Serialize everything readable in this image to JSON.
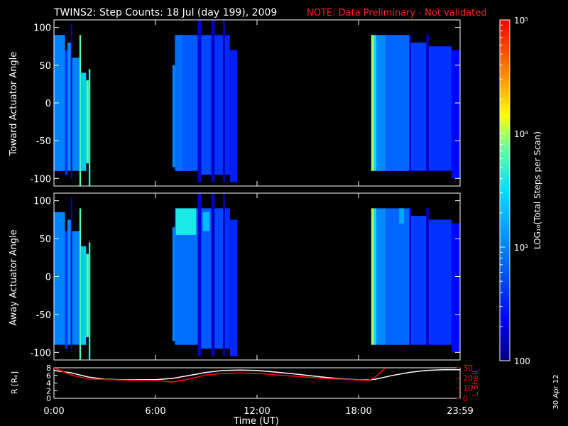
{
  "title": {
    "main": "TWINS2: Step Counts: 18 Jul (day 199), 2009",
    "note": "NOTE: Data Preliminary - Not validated",
    "note_color": "#ff2020"
  },
  "side_date": "30 Apr 12",
  "colorbar": {
    "label": "LOG₁₀(Total Steps per Scan)",
    "tick_labels": [
      "10⁵",
      "10⁴",
      "10³",
      "100"
    ],
    "range_log": [
      2,
      5
    ],
    "colormap": [
      "#000080",
      "#0000ff",
      "#0080ff",
      "#00ffff",
      "#80ff80",
      "#ffff00",
      "#ff8000",
      "#ff0000"
    ]
  },
  "chart_data": [
    {
      "type": "heatmap",
      "ylabel": "Toward Actuator Angle",
      "xlim_hours": [
        0,
        24
      ],
      "ylim": [
        -110,
        110
      ],
      "y_ticks": [
        100,
        50,
        0,
        -50,
        -100
      ],
      "y_tick_labels": [
        "100",
        "50",
        "0",
        "-50",
        "-100"
      ],
      "x_ticks_hours": [
        0,
        6,
        12,
        18,
        24
      ],
      "z_scale": "log10",
      "blocks": [
        {
          "t0": 0.0,
          "t1": 0.65,
          "y0": -90,
          "y1": 90,
          "log": 3.0
        },
        {
          "t0": 0.65,
          "t1": 0.8,
          "y0": -95,
          "y1": 70,
          "log": 2.6
        },
        {
          "t0": 0.8,
          "t1": 1.0,
          "y0": -90,
          "y1": 80,
          "log": 3.05
        },
        {
          "t0": 1.0,
          "t1": 1.08,
          "y0": -100,
          "y1": 105,
          "log": 2.2
        },
        {
          "t0": 1.08,
          "t1": 1.5,
          "y0": -90,
          "y1": 60,
          "log": 3.0
        },
        {
          "t0": 1.5,
          "t1": 1.6,
          "y0": -110,
          "y1": 90,
          "log": 3.8
        },
        {
          "t0": 1.6,
          "t1": 1.9,
          "y0": -90,
          "y1": 40,
          "log": 3.4
        },
        {
          "t0": 1.9,
          "t1": 2.05,
          "y0": -80,
          "y1": 30,
          "log": 3.8
        },
        {
          "t0": 2.05,
          "t1": 2.15,
          "y0": -110,
          "y1": 45,
          "log": 3.7
        },
        {
          "t0": 7.0,
          "t1": 7.15,
          "y0": -85,
          "y1": 50,
          "log": 3.0
        },
        {
          "t0": 7.15,
          "t1": 7.6,
          "y0": -90,
          "y1": 90,
          "log": 2.9
        },
        {
          "t0": 7.6,
          "t1": 8.5,
          "y0": -90,
          "y1": 90,
          "log": 2.8
        },
        {
          "t0": 8.5,
          "t1": 8.7,
          "y0": -105,
          "y1": 110,
          "log": 2.25
        },
        {
          "t0": 8.7,
          "t1": 9.3,
          "y0": -95,
          "y1": 90,
          "log": 2.7
        },
        {
          "t0": 9.3,
          "t1": 9.5,
          "y0": -105,
          "y1": 110,
          "log": 2.2
        },
        {
          "t0": 9.5,
          "t1": 10.0,
          "y0": -95,
          "y1": 90,
          "log": 2.6
        },
        {
          "t0": 10.0,
          "t1": 10.1,
          "y0": -105,
          "y1": 110,
          "log": 2.2
        },
        {
          "t0": 10.1,
          "t1": 10.4,
          "y0": -95,
          "y1": 90,
          "log": 2.55
        },
        {
          "t0": 10.4,
          "t1": 10.85,
          "y0": -105,
          "y1": 70,
          "log": 2.5
        },
        {
          "t0": 18.75,
          "t1": 18.9,
          "y0": -90,
          "y1": 90,
          "log": 4.0
        },
        {
          "t0": 18.9,
          "t1": 19.05,
          "y0": -90,
          "y1": 90,
          "log": 3.5
        },
        {
          "t0": 19.05,
          "t1": 19.6,
          "y0": -90,
          "y1": 90,
          "log": 3.05
        },
        {
          "t0": 19.6,
          "t1": 21.0,
          "y0": -90,
          "y1": 90,
          "log": 2.85
        },
        {
          "t0": 21.0,
          "t1": 21.1,
          "y0": -90,
          "y1": 90,
          "log": 2.2
        },
        {
          "t0": 21.1,
          "t1": 22.0,
          "y0": -90,
          "y1": 80,
          "log": 2.65
        },
        {
          "t0": 22.0,
          "t1": 22.15,
          "y0": -90,
          "y1": 90,
          "log": 2.2
        },
        {
          "t0": 22.15,
          "t1": 23.5,
          "y0": -90,
          "y1": 75,
          "log": 2.6
        },
        {
          "t0": 23.5,
          "t1": 24.0,
          "y0": -100,
          "y1": 70,
          "log": 2.4
        }
      ]
    },
    {
      "type": "heatmap",
      "ylabel": "Away Actuator Angle",
      "xlim_hours": [
        0,
        24
      ],
      "ylim": [
        -110,
        110
      ],
      "y_ticks": [
        100,
        50,
        0,
        -50,
        -100
      ],
      "y_tick_labels": [
        "100",
        "50",
        "0",
        "-50",
        "-100"
      ],
      "x_ticks_hours": [
        0,
        6,
        12,
        18,
        24
      ],
      "z_scale": "log10",
      "blocks": [
        {
          "t0": 0.0,
          "t1": 0.65,
          "y0": -90,
          "y1": 85,
          "log": 3.0
        },
        {
          "t0": 0.65,
          "t1": 0.8,
          "y0": -95,
          "y1": 60,
          "log": 2.6
        },
        {
          "t0": 0.8,
          "t1": 1.0,
          "y0": -90,
          "y1": 75,
          "log": 3.05
        },
        {
          "t0": 1.0,
          "t1": 1.08,
          "y0": -100,
          "y1": 105,
          "log": 2.2
        },
        {
          "t0": 1.08,
          "t1": 1.5,
          "y0": -90,
          "y1": 60,
          "log": 3.0
        },
        {
          "t0": 1.5,
          "t1": 1.6,
          "y0": -110,
          "y1": 90,
          "log": 3.8
        },
        {
          "t0": 1.6,
          "t1": 1.9,
          "y0": -90,
          "y1": 40,
          "log": 3.4
        },
        {
          "t0": 1.9,
          "t1": 2.05,
          "y0": -80,
          "y1": 30,
          "log": 3.8
        },
        {
          "t0": 2.05,
          "t1": 2.15,
          "y0": -110,
          "y1": 45,
          "log": 3.7
        },
        {
          "t0": 7.0,
          "t1": 7.15,
          "y0": -85,
          "y1": 65,
          "log": 3.0
        },
        {
          "t0": 7.15,
          "t1": 8.5,
          "y0": -90,
          "y1": 90,
          "log": 2.9
        },
        {
          "t0": 7.2,
          "t1": 8.4,
          "y0": 55,
          "y1": 90,
          "log": 3.6
        },
        {
          "t0": 8.5,
          "t1": 8.7,
          "y0": -105,
          "y1": 110,
          "log": 2.25
        },
        {
          "t0": 8.7,
          "t1": 9.3,
          "y0": -95,
          "y1": 90,
          "log": 2.8
        },
        {
          "t0": 8.8,
          "t1": 9.2,
          "y0": 60,
          "y1": 85,
          "log": 3.3
        },
        {
          "t0": 9.3,
          "t1": 9.5,
          "y0": -105,
          "y1": 110,
          "log": 2.2
        },
        {
          "t0": 9.5,
          "t1": 10.0,
          "y0": -95,
          "y1": 90,
          "log": 2.7
        },
        {
          "t0": 10.0,
          "t1": 10.1,
          "y0": -105,
          "y1": 110,
          "log": 2.2
        },
        {
          "t0": 10.1,
          "t1": 10.4,
          "y0": -95,
          "y1": 90,
          "log": 2.6
        },
        {
          "t0": 10.4,
          "t1": 10.85,
          "y0": -105,
          "y1": 75,
          "log": 2.55
        },
        {
          "t0": 18.75,
          "t1": 18.9,
          "y0": -90,
          "y1": 90,
          "log": 4.0
        },
        {
          "t0": 18.9,
          "t1": 19.05,
          "y0": -90,
          "y1": 90,
          "log": 3.5
        },
        {
          "t0": 19.05,
          "t1": 19.6,
          "y0": -90,
          "y1": 90,
          "log": 3.05
        },
        {
          "t0": 19.6,
          "t1": 21.0,
          "y0": -90,
          "y1": 90,
          "log": 2.85
        },
        {
          "t0": 20.4,
          "t1": 20.7,
          "y0": 70,
          "y1": 90,
          "log": 3.2
        },
        {
          "t0": 21.0,
          "t1": 21.1,
          "y0": -90,
          "y1": 90,
          "log": 2.2
        },
        {
          "t0": 21.1,
          "t1": 22.0,
          "y0": -90,
          "y1": 80,
          "log": 2.65
        },
        {
          "t0": 22.0,
          "t1": 22.15,
          "y0": -90,
          "y1": 90,
          "log": 2.2
        },
        {
          "t0": 22.15,
          "t1": 23.5,
          "y0": -90,
          "y1": 75,
          "log": 2.6
        },
        {
          "t0": 23.5,
          "t1": 24.0,
          "y0": -100,
          "y1": 70,
          "log": 2.4
        }
      ]
    },
    {
      "type": "line",
      "ylabel_left": "R [Rₑ]",
      "ylabel_right": "L Shell",
      "xlabel": "Time (UT)",
      "x_tick_labels": [
        "0:00",
        "6:00",
        "12:00",
        "18:00",
        "23:59"
      ],
      "x_ticks_hours": [
        0,
        6,
        12,
        18,
        24
      ],
      "ylim_left": [
        0,
        8
      ],
      "y_ticks_left": [
        8,
        6,
        4,
        2,
        0
      ],
      "ylim_right": [
        0,
        30
      ],
      "y_ticks_right": [
        30,
        20,
        10,
        0
      ],
      "series": [
        {
          "axis": "left",
          "color": "#ffffff",
          "x": [
            0,
            1,
            2,
            3,
            4,
            5,
            6,
            7,
            8,
            9,
            10,
            11,
            12,
            13,
            14,
            15,
            16,
            17,
            18,
            18.6,
            19,
            20,
            21,
            22,
            23,
            24
          ],
          "y": [
            7.3,
            6.7,
            5.6,
            5.0,
            4.9,
            4.9,
            4.9,
            5.2,
            6.0,
            6.8,
            7.3,
            7.4,
            7.3,
            6.9,
            6.5,
            6.0,
            5.5,
            5.1,
            4.85,
            4.8,
            5.0,
            6.0,
            6.8,
            7.3,
            7.5,
            7.5
          ]
        },
        {
          "axis": "right",
          "color": "#ff0000",
          "x": [
            0,
            1,
            2,
            4,
            6,
            7,
            8,
            9,
            10,
            11,
            12,
            14,
            16,
            18.6,
            19,
            19.6
          ],
          "y": [
            30,
            23,
            19,
            18,
            17.5,
            16,
            19,
            23,
            24.5,
            25,
            24.5,
            22,
            19.5,
            17.5,
            21,
            30
          ]
        }
      ]
    }
  ]
}
